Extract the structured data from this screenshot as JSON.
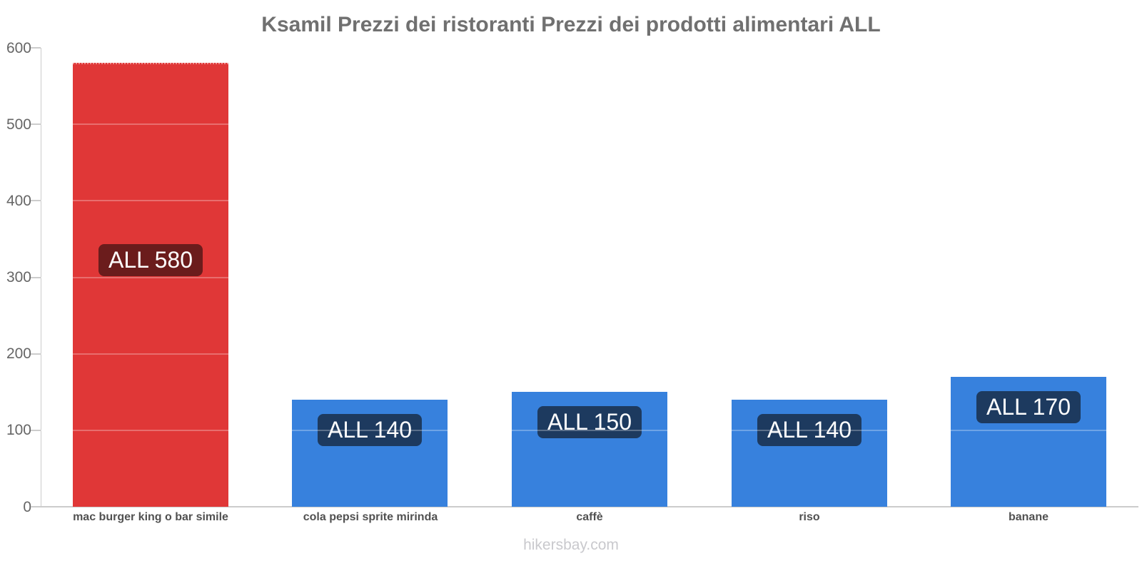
{
  "footer": "hikersbay.com",
  "colors": {
    "background": "#ffffff",
    "title": "#707070",
    "axis": "#cccccc",
    "tick_label": "#666666",
    "category_label": "#515151",
    "watermark": "#c9c9cd",
    "bar_highlight": "#e03737",
    "bar_default": "#3781dd",
    "badge_on_highlight": "#6b1c1c",
    "badge_on_default": "#1d3a5f"
  },
  "chart_data": {
    "type": "bar",
    "title": "Ksamil Prezzi dei ristoranti Prezzi dei prodotti alimentari ALL",
    "currency": "ALL",
    "categories": [
      "mac burger king o bar simile",
      "cola pepsi sprite mirinda",
      "caffè",
      "riso",
      "banane"
    ],
    "values": [
      580,
      140,
      150,
      140,
      170
    ],
    "bar_labels": [
      "ALL 580",
      "ALL 140",
      "ALL 150",
      "ALL 140",
      "ALL 170"
    ],
    "bar_colors": [
      "#e03737",
      "#3781dd",
      "#3781dd",
      "#3781dd",
      "#3781dd"
    ],
    "badge_colors": [
      "#6b1c1c",
      "#1d3a5f",
      "#1d3a5f",
      "#1d3a5f",
      "#1d3a5f"
    ],
    "xlabel": "",
    "ylabel": "",
    "ylim": [
      0,
      600
    ],
    "yticks": [
      0,
      100,
      200,
      300,
      400,
      500,
      600
    ],
    "grid": "white gridlines overlaying bars",
    "legend": false,
    "watermark": "hikersbay.com"
  }
}
